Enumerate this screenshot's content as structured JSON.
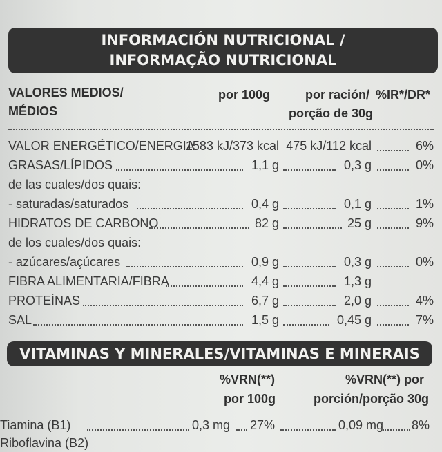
{
  "nutrition": {
    "title_line1": "INFORMACIÓN NUTRICIONAL /",
    "title_line2": "INFORMAÇÃO NUTRICIONAL",
    "headers": {
      "col_label_1": "VALORES MEDIOS/",
      "col_label_2": "MÉDIOS",
      "per100": "por 100g",
      "serving_1": "por ración/",
      "serving_2": "porção de 30g",
      "ir": "%IR*/DR*"
    },
    "rows": [
      {
        "label": "VALOR ENERGÉTICO/ENERGIA",
        "per100": "1583 kJ/373 kcal",
        "serving": "475 kJ/112 kcal",
        "ir": "6%"
      },
      {
        "label": "GRASAS/LÍPIDOS",
        "per100": "1,1 g",
        "serving": "0,3 g",
        "ir": "0%"
      },
      {
        "label": "de las cuales/dos quais:",
        "per100": "",
        "serving": "",
        "ir": ""
      },
      {
        "label": "- saturadas/saturados",
        "per100": "0,4 g",
        "serving": "0,1 g",
        "ir": "1%"
      },
      {
        "label": "HIDRATOS DE CARBONO",
        "per100": "82 g",
        "serving": "25 g",
        "ir": "9%"
      },
      {
        "label": "de los cuales/dos quais:",
        "per100": "",
        "serving": "",
        "ir": ""
      },
      {
        "label": "- azúcares/açúcares",
        "per100": "0,9 g",
        "serving": "0,3 g",
        "ir": "0%"
      },
      {
        "label": "FIBRA ALIMENTARIA/FIBRA",
        "per100": "4,4 g",
        "serving": "1,3 g",
        "ir": ""
      },
      {
        "label": "PROTEÍNAS",
        "per100": "6,7 g",
        "serving": "2,0 g",
        "ir": "4%"
      },
      {
        "label": "SAL",
        "per100": "1,5 g",
        "serving": "0,45 g",
        "ir": "7%"
      }
    ]
  },
  "vitamins": {
    "title": "VITAMINAS Y MINERALES/VITAMINAS E MINERAIS",
    "col1_line1": "%VRN(**)",
    "col1_line2": "por 100g",
    "col2_line1": "%VRN(**) por",
    "col2_line2": "porción/porção 30g",
    "rows": [
      {
        "label": "Tiamina (B1)",
        "per100": "0,3 mg",
        "vrn100": "27%",
        "serving": "0,09 mg",
        "vrn_serving": "8%"
      },
      {
        "label": "Riboflavina (B2)",
        "per100": "",
        "vrn100": "",
        "serving": "",
        "vrn_serving": ""
      }
    ]
  }
}
